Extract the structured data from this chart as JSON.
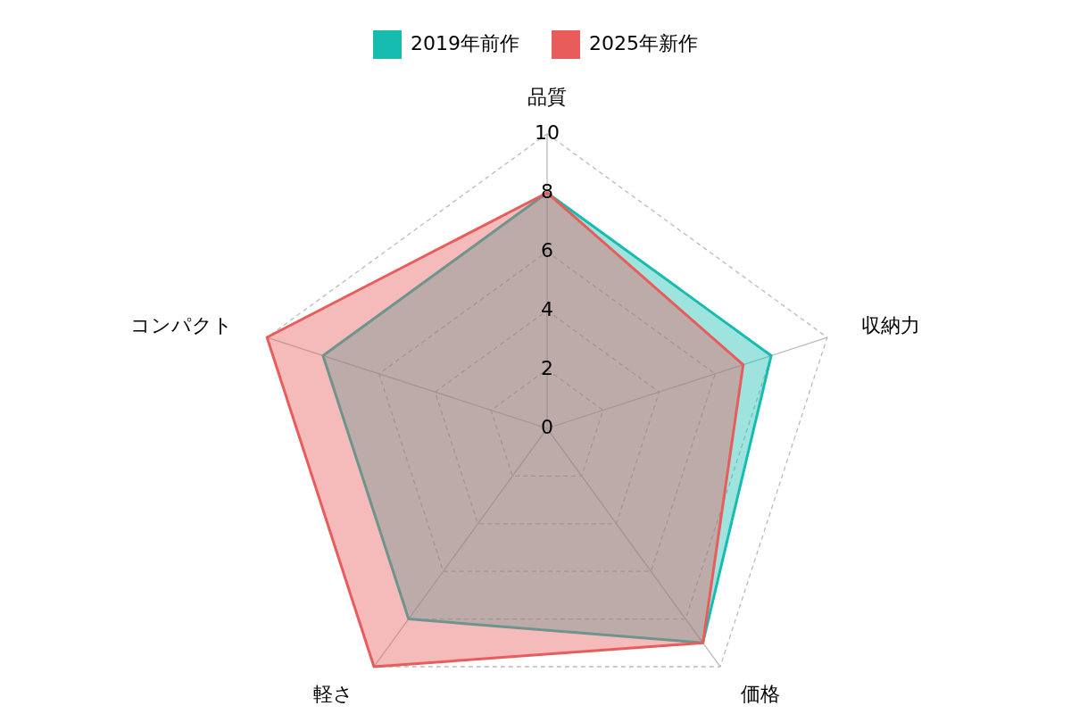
{
  "chart_data": {
    "type": "radar",
    "categories": [
      "品質",
      "収納力",
      "価格",
      "軽さ",
      "コンパクト"
    ],
    "series": [
      {
        "name": "2019年前作",
        "color": "#17bcb0",
        "values": [
          8,
          8,
          9,
          8,
          8
        ]
      },
      {
        "name": "2025年新作",
        "color": "#e85c5c",
        "values": [
          8,
          7,
          9,
          10,
          10
        ]
      }
    ],
    "ylim": [
      0,
      10
    ],
    "yticks": [
      0,
      2,
      4,
      6,
      8,
      10
    ],
    "grid": true,
    "legend": "top"
  }
}
